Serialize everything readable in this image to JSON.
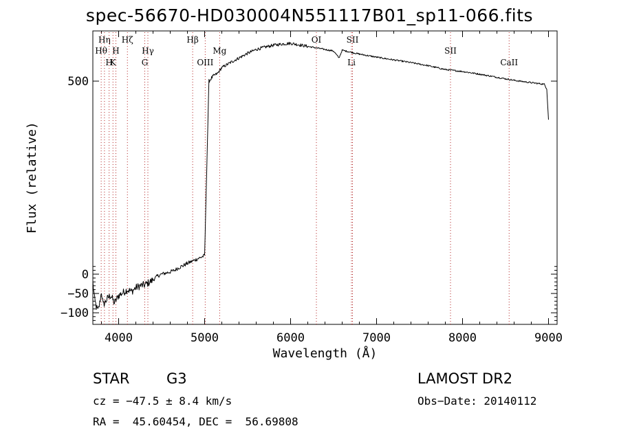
{
  "chart_data": {
    "type": "line",
    "title": "spec-56670-HD030004N551117B01_sp11-066.fits",
    "xlabel": "Wavelength (Å)",
    "ylabel": "Flux (relative)",
    "xlim": [
      3700,
      9100
    ],
    "ylim": [
      -130,
      630
    ],
    "xticks": [
      4000,
      5000,
      6000,
      7000,
      8000,
      9000
    ],
    "yticks": [
      -100,
      -50,
      0,
      500
    ],
    "ytick_labels": [
      "−100",
      "−50",
      "0",
      "500"
    ],
    "grid": false,
    "series": [
      {
        "x": [
          3700,
          3720,
          3740,
          3760,
          3780,
          3800,
          3820,
          3850,
          3880,
          3910,
          3950,
          4000,
          4050,
          4100,
          4150,
          4200,
          4250,
          4300,
          4350,
          4400,
          4450,
          4500,
          4550,
          4600,
          4650,
          4700,
          4750,
          4800,
          4850,
          4900,
          4950,
          5000,
          5050,
          5100,
          5150,
          5200,
          5300,
          5400,
          5500,
          5600,
          5700,
          5800,
          5900,
          6000,
          6100,
          6200,
          6300,
          6400,
          6500,
          6563,
          6600,
          6700,
          6800,
          6900,
          7000,
          7200,
          7400,
          7600,
          7700,
          7800,
          8000,
          8200,
          8400,
          8600,
          8800,
          8950,
          8980,
          9000
        ],
        "y": [
          -20,
          -65,
          -85,
          -95,
          -75,
          -45,
          -80,
          -70,
          -60,
          -55,
          -75,
          -55,
          -48,
          -40,
          -45,
          -35,
          -30,
          -28,
          -22,
          -15,
          -5,
          0,
          3,
          6,
          10,
          17,
          22,
          28,
          33,
          38,
          43,
          48,
          500,
          513,
          520,
          535,
          548,
          560,
          572,
          582,
          588,
          593,
          596,
          598,
          594,
          590,
          586,
          582,
          578,
          560,
          580,
          575,
          570,
          566,
          562,
          555,
          548,
          540,
          535,
          530,
          525,
          518,
          510,
          502,
          496,
          492,
          480,
          400
        ]
      }
    ],
    "lines": [
      {
        "label": "Hη",
        "x": 3835,
        "row": 0
      },
      {
        "label": "Hθ",
        "x": 3797,
        "row": 1
      },
      {
        "label": "H",
        "x": 3968,
        "row": 1
      },
      {
        "label": "H",
        "x": 3889,
        "row": 2
      },
      {
        "label": "K",
        "x": 3934,
        "row": 2
      },
      {
        "label": "Hζ",
        "x": 4102,
        "row": 0
      },
      {
        "label": "Hγ",
        "x": 4340,
        "row": 1
      },
      {
        "label": "G",
        "x": 4304,
        "row": 2
      },
      {
        "label": "Hβ",
        "x": 4861,
        "row": 0
      },
      {
        "label": "OIII",
        "x": 5007,
        "row": 2
      },
      {
        "label": "Mg",
        "x": 5175,
        "row": 1
      },
      {
        "label": "OI",
        "x": 6300,
        "row": 0
      },
      {
        "label": "SII",
        "x": 6720,
        "row": 0
      },
      {
        "label": "Li",
        "x": 6708,
        "row": 2
      },
      {
        "label": "SII",
        "x": 7860,
        "row": 1
      },
      {
        "label": "CaII",
        "x": 8542,
        "row": 2
      }
    ]
  },
  "info": {
    "object_class": "STAR",
    "subclass": "G3",
    "survey": "LAMOST DR2",
    "redshift": "cz = −47.5 ± 8.4 km/s",
    "obs_date": "Obs−Date: 20140112",
    "coords": "RA =  45.60454, DEC =  56.69808"
  },
  "colors": {
    "spectrum": "#000000",
    "line_marker": "#b22222"
  }
}
